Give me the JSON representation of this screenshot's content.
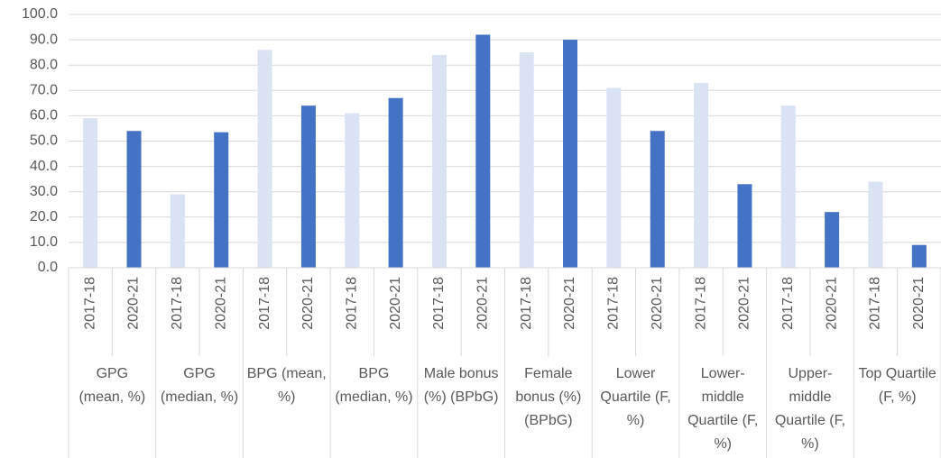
{
  "chart_data": {
    "type": "bar",
    "categories": [
      "GPG (mean, %)",
      "GPG (median, %)",
      "BPG (mean, %)",
      "BPG (median, %)",
      "Male bonus (%) (BPbG)",
      "Female bonus (%) (BPbG)",
      "Lower Quartile (F, %)",
      "Lower-middle Quartile (F, %)",
      "Upper-middle Quartile (F, %)",
      "Top Quartile (F, %)"
    ],
    "series": [
      {
        "name": "2017-18",
        "color": "#dae3f3",
        "values": [
          59,
          29,
          86,
          61,
          84,
          85,
          71,
          73,
          64,
          34
        ]
      },
      {
        "name": "2020-21",
        "color": "#4472c4",
        "values": [
          54,
          53.5,
          64,
          67,
          92,
          90,
          54,
          33,
          22,
          9
        ]
      }
    ],
    "ylim": [
      0,
      100
    ],
    "yticks": [
      {
        "value": 0,
        "label": "0.0"
      },
      {
        "value": 10,
        "label": "10.0"
      },
      {
        "value": 20,
        "label": "20.0"
      },
      {
        "value": 30,
        "label": "30.0"
      },
      {
        "value": 40,
        "label": "40.0"
      },
      {
        "value": 50,
        "label": "50.0"
      },
      {
        "value": 60,
        "label": "60.0"
      },
      {
        "value": 70,
        "label": "70.0"
      },
      {
        "value": 80,
        "label": "80.0"
      },
      {
        "value": 90,
        "label": "90.0"
      },
      {
        "value": 100,
        "label": "100.0"
      }
    ],
    "grid": true
  }
}
